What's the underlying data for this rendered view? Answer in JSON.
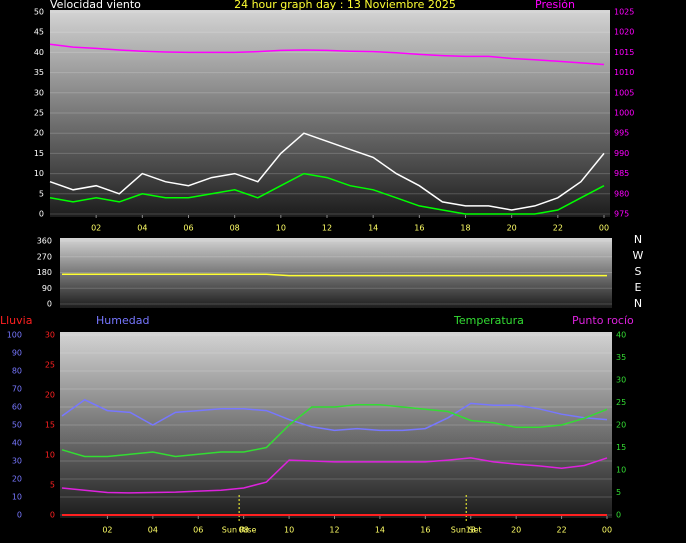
{
  "chart_data": [
    {
      "type": "line",
      "title": "24 hour graph day : 13 Noviembre 2025",
      "ylabel": "Velocidad viento",
      "x": [
        0,
        1,
        2,
        3,
        4,
        5,
        6,
        7,
        8,
        9,
        10,
        11,
        12,
        13,
        14,
        15,
        16,
        17,
        18,
        19,
        20,
        21,
        22,
        23,
        24
      ],
      "xlim": [
        0,
        24
      ],
      "xticks": [
        {
          "value": 2,
          "label": "02"
        },
        {
          "value": 4,
          "label": "04"
        },
        {
          "value": 6,
          "label": "06"
        },
        {
          "value": 8,
          "label": "08"
        },
        10,
        12,
        14,
        16,
        18,
        20,
        22,
        {
          "value": 24,
          "label": "00"
        }
      ],
      "ylim": [
        0,
        50
      ],
      "yticks": [
        0,
        5,
        10,
        15,
        20,
        25,
        30,
        35,
        40,
        45,
        50
      ],
      "y2lim": [
        975,
        1025
      ],
      "y2ticks": [
        975,
        980,
        985,
        990,
        995,
        1000,
        1005,
        1010,
        1015,
        1020,
        1025
      ],
      "axis_colors": {
        "y": "#ffffff",
        "y2": "#ff00ff"
      },
      "grid": true,
      "series": [
        {
          "color": "#ffffff",
          "values": [
            8,
            6,
            7,
            5,
            10,
            8,
            7,
            9,
            10,
            8,
            15,
            20,
            18,
            16,
            14,
            10,
            7,
            3,
            2,
            2,
            1,
            2,
            4,
            8,
            15
          ]
        },
        {
          "color": "#00ff00",
          "values": [
            4,
            3,
            4,
            3,
            5,
            4,
            4,
            5,
            6,
            4,
            7,
            10,
            9,
            7,
            6,
            4,
            2,
            1,
            0,
            0,
            0,
            0,
            1,
            4,
            7
          ]
        },
        {
          "name": "Presión",
          "color": "#ff00ff",
          "axis": "y2",
          "values": [
            1017,
            1016.3,
            1016,
            1015.6,
            1015.3,
            1015.1,
            1015,
            1015,
            1015,
            1015.2,
            1015.5,
            1015.6,
            1015.5,
            1015.3,
            1015.2,
            1014.9,
            1014.5,
            1014.2,
            1014,
            1014,
            1013.5,
            1013.2,
            1012.8,
            1012.4,
            1012
          ]
        }
      ]
    },
    {
      "type": "line",
      "x": [
        0,
        1,
        2,
        3,
        4,
        5,
        6,
        7,
        8,
        9,
        10,
        11,
        12,
        13,
        14,
        15,
        16,
        17,
        18,
        19,
        20,
        21,
        22,
        23,
        24
      ],
      "xlim": [
        0,
        24
      ],
      "ylim": [
        0,
        360
      ],
      "yticks": [
        0,
        90,
        180,
        270,
        360
      ],
      "axis_colors": {
        "y": "#ffffff"
      },
      "grid": true,
      "compass": [
        "N",
        "W",
        "S",
        "E",
        "N"
      ],
      "series": [
        {
          "color": "#ffff33",
          "values": [
            170,
            170,
            170,
            170,
            170,
            170,
            170,
            170,
            170,
            170,
            162,
            162,
            162,
            162,
            162,
            162,
            162,
            162,
            162,
            162,
            162,
            162,
            162,
            162,
            162
          ]
        }
      ]
    },
    {
      "type": "line",
      "x": [
        0,
        1,
        2,
        3,
        4,
        5,
        6,
        7,
        8,
        9,
        10,
        11,
        12,
        13,
        14,
        15,
        16,
        17,
        18,
        19,
        20,
        21,
        22,
        23,
        24
      ],
      "xlim": [
        0,
        24
      ],
      "xticks": [
        {
          "value": 2,
          "label": "02"
        },
        {
          "value": 4,
          "label": "04"
        },
        {
          "value": 6,
          "label": "06"
        },
        {
          "value": 8,
          "label": "08"
        },
        10,
        12,
        14,
        16,
        18,
        20,
        22,
        {
          "value": 24,
          "label": "00"
        }
      ],
      "ylim": [
        0,
        100
      ],
      "yticks": [
        0,
        10,
        20,
        30,
        40,
        50,
        60,
        70,
        80,
        90,
        100
      ],
      "y2lim": [
        0,
        40
      ],
      "y2ticks": [
        0,
        5,
        10,
        15,
        20,
        25,
        30,
        35,
        40
      ],
      "y3lim": [
        0,
        30
      ],
      "y3ticks": [
        0,
        5,
        10,
        15,
        20,
        25,
        30
      ],
      "axis_colors": {
        "y": "#7777ff",
        "y2": "#33dd33",
        "y3": "#ff2020"
      },
      "grid": true,
      "annotations": [
        {
          "text": "Sun Rise",
          "x": 7.8
        },
        {
          "text": "Sun Set",
          "x": 17.8
        }
      ],
      "series": [
        {
          "name": "Lluvia",
          "color": "#ff2020",
          "axis": "y3",
          "values": [
            0,
            0,
            0,
            0,
            0,
            0,
            0,
            0,
            0,
            0,
            0,
            0,
            0,
            0,
            0,
            0,
            0,
            0,
            0,
            0,
            0,
            0,
            0,
            0,
            0
          ]
        },
        {
          "name": "Humedad",
          "color": "#7777ff",
          "values": [
            55,
            64,
            58,
            57,
            50,
            57,
            58,
            59,
            59,
            58,
            53,
            49,
            47,
            48,
            47,
            47,
            48,
            54,
            62,
            61,
            61,
            59,
            56,
            54,
            53
          ]
        },
        {
          "name": "Temperatura",
          "color": "#33dd33",
          "axis": "y2",
          "values": [
            14.5,
            13,
            13,
            13.5,
            14,
            13,
            13.5,
            14,
            14,
            15,
            20,
            24,
            24,
            24.5,
            24.5,
            24,
            23.5,
            23,
            21,
            20.5,
            19.5,
            19.5,
            20,
            21.5,
            23.5
          ]
        },
        {
          "name": "Punto rocío",
          "color": "#dd22dd",
          "axis": "y2",
          "values": [
            6,
            5.5,
            5,
            4.9,
            5,
            5.1,
            5.3,
            5.5,
            6,
            7.3,
            12.2,
            12,
            11.8,
            11.8,
            11.8,
            11.8,
            11.8,
            12.2,
            12.7,
            11.8,
            11.3,
            10.9,
            10.4,
            11,
            12.7
          ]
        }
      ]
    }
  ]
}
